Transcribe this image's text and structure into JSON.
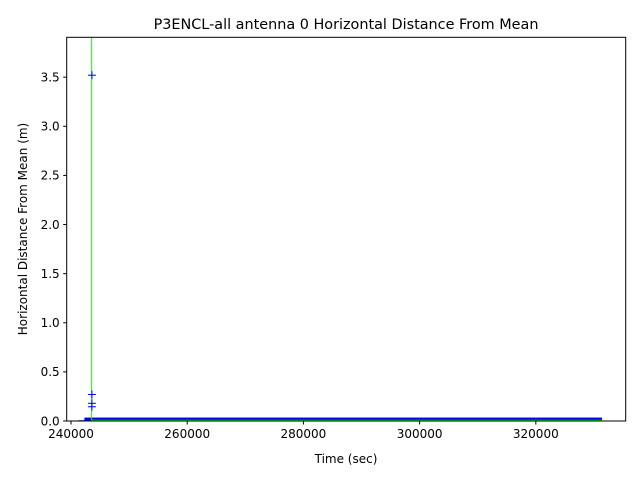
{
  "chart_data": {
    "type": "scatter",
    "title": "P3ENCL-all antenna 0 Horizontal Distance From Mean",
    "xlabel": "Time (sec)",
    "ylabel": "Horizontal Distance From Mean (m)",
    "xlim": [
      239260,
      335470
    ],
    "ylim": [
      0,
      3.906
    ],
    "xticks": [
      240000,
      260000,
      280000,
      300000,
      320000
    ],
    "xtick_labels": [
      "240000",
      "260000",
      "280000",
      "300000",
      "320000"
    ],
    "yticks": [
      0,
      0.5,
      1.0,
      1.5,
      2.0,
      2.5,
      3.0,
      3.5
    ],
    "ytick_labels": [
      "0.0",
      "0.5",
      "1.0",
      "1.5",
      "2.0",
      "2.5",
      "3.0",
      "3.5"
    ],
    "grid": false,
    "colors": {
      "points": "#0000ff",
      "line": "#00ff00",
      "band": "#0000ee"
    },
    "series": [
      {
        "marker": "+",
        "outliers": [
          {
            "x": 243600,
            "y": 3.52
          },
          {
            "x": 243600,
            "y": 0.27
          },
          {
            "x": 243600,
            "y": 0.18
          },
          {
            "x": 243600,
            "y": 0.145
          }
        ],
        "dense_band": {
          "x_start": 242300,
          "x_end": 331400,
          "y_min": 0.0,
          "y_max": 0.035
        }
      },
      {
        "line": true,
        "spike": {
          "x": 243560,
          "y_min": 0,
          "y_max": 3.906
        },
        "baseline": {
          "x_start": 243560,
          "x_end": 331400,
          "y": 0.005
        }
      }
    ]
  }
}
